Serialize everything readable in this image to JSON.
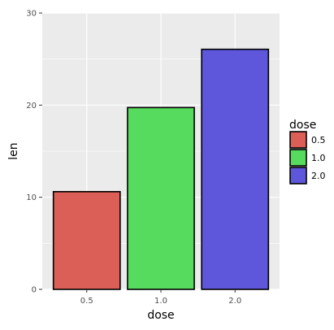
{
  "chart_data": {
    "type": "bar",
    "categories": [
      "0.5",
      "1.0",
      "2.0"
    ],
    "values": [
      10.605,
      19.735,
      26.06
    ],
    "xlabel": "dose",
    "ylabel": "len",
    "ylim": [
      0,
      30
    ],
    "yticks": [
      0,
      10,
      20,
      30
    ],
    "grid": true,
    "legend": {
      "title": "dose",
      "placement": "right",
      "entries": [
        "0.5",
        "1.0",
        "2.0"
      ]
    },
    "colors": [
      "#DB5F57",
      "#57DB5F",
      "#5F57DB"
    ],
    "panel_background": "#EBEBEB",
    "grid_color": "#FFFFFF",
    "bar_outline": "#000000"
  }
}
